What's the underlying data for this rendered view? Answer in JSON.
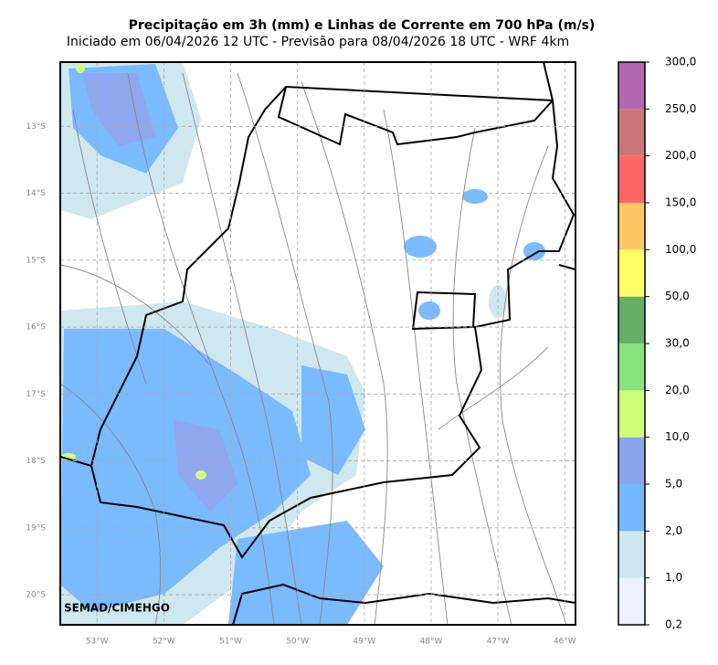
{
  "header": {
    "title": "Precipitação em 3h (mm) e Linhas de Corrente em 700 hPa (m/s)",
    "subtitle": "Iniciado em 06/04/2026 12 UTC - Previsão para 08/04/2026 18 UTC - WRF 4km"
  },
  "map": {
    "xlim": [
      -53.55,
      -45.84
    ],
    "ylim": [
      -20.45,
      -12.04
    ],
    "xticks": [
      {
        "value": -53,
        "label": "53°W"
      },
      {
        "value": -52,
        "label": "52°W"
      },
      {
        "value": -51,
        "label": "51°W"
      },
      {
        "value": -50,
        "label": "50°W"
      },
      {
        "value": -49,
        "label": "49°W"
      },
      {
        "value": -48,
        "label": "48°W"
      },
      {
        "value": -47,
        "label": "47°W"
      },
      {
        "value": -46,
        "label": "46°W"
      }
    ],
    "yticks": [
      {
        "value": -13,
        "label": "13°S"
      },
      {
        "value": -14,
        "label": "14°S"
      },
      {
        "value": -15,
        "label": "15°S"
      },
      {
        "value": -16,
        "label": "16°S"
      },
      {
        "value": -17,
        "label": "17°S"
      },
      {
        "value": -18,
        "label": "18°S"
      },
      {
        "value": -19,
        "label": "19°S"
      },
      {
        "value": -20,
        "label": "20°S"
      }
    ],
    "grid": true,
    "credit": "SEMAD/CIMEHGO"
  },
  "colorbar": {
    "levels": [
      {
        "value": 0.2,
        "label": "0,2"
      },
      {
        "value": 1,
        "label": "1,0"
      },
      {
        "value": 2,
        "label": "2,0"
      },
      {
        "value": 5,
        "label": "5,0"
      },
      {
        "value": 10,
        "label": "10,0"
      },
      {
        "value": 20,
        "label": "20,0"
      },
      {
        "value": 30,
        "label": "30,0"
      },
      {
        "value": 50,
        "label": "50,0"
      },
      {
        "value": 100,
        "label": "100,0"
      },
      {
        "value": 150,
        "label": "150,0"
      },
      {
        "value": 200,
        "label": "200,0"
      },
      {
        "value": 250,
        "label": "250,0"
      },
      {
        "value": 300,
        "label": "300,0"
      }
    ],
    "colors": [
      "#eef0fb",
      "#cde6ef",
      "#73b7ff",
      "#8aa4f0",
      "#ccff77",
      "#88e27e",
      "#66b066",
      "#ffff66",
      "#ffc866",
      "#ff6666",
      "#cc7777",
      "#b266b2"
    ]
  }
}
